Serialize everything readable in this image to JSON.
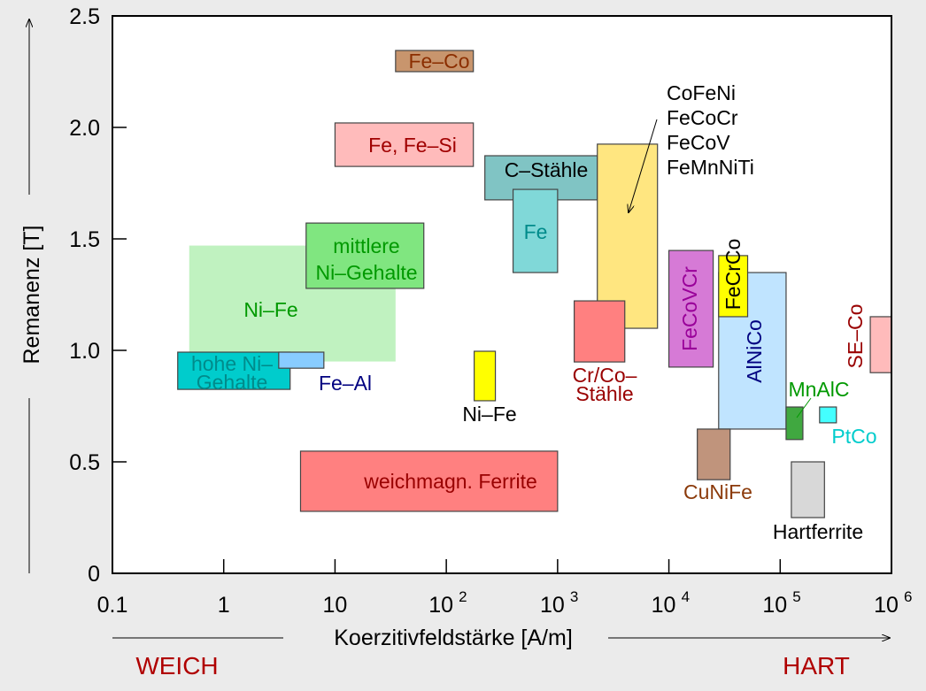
{
  "chart_data": {
    "type": "area",
    "title": "",
    "xlabel": "Koerzitivfeldstärke [A/m]",
    "ylabel": "Remanenz [T]",
    "xscale": "log",
    "xlim": [
      0.1,
      1000000
    ],
    "ylim": [
      0,
      2.5
    ],
    "x_ticks": [
      {
        "value": 0.1,
        "base": "0.1",
        "exp": ""
      },
      {
        "value": 1,
        "base": "1",
        "exp": ""
      },
      {
        "value": 10,
        "base": "10",
        "exp": ""
      },
      {
        "value": 100,
        "base": "10",
        "exp": "2"
      },
      {
        "value": 1000,
        "base": "10",
        "exp": "3"
      },
      {
        "value": 10000,
        "base": "10",
        "exp": "4"
      },
      {
        "value": 100000,
        "base": "10",
        "exp": "5"
      },
      {
        "value": 1000000,
        "base": "10",
        "exp": "6"
      }
    ],
    "y_ticks": [
      {
        "value": 0,
        "label": "0"
      },
      {
        "value": 0.5,
        "label": "0.5"
      },
      {
        "value": 1.0,
        "label": "1.0"
      },
      {
        "value": 1.5,
        "label": "1.5"
      },
      {
        "value": 2.0,
        "label": "2.0"
      },
      {
        "value": 2.5,
        "label": "2.5"
      }
    ],
    "grid": false,
    "regions": [
      {
        "name": "Ni-Fe (Bereich)",
        "x": [
          0.49,
          35
        ],
        "y": [
          0.95,
          1.47
        ],
        "fill": "#c0f2c0",
        "border": false,
        "label": [
          "Ni–Fe"
        ],
        "label_color": "#009900"
      },
      {
        "name": "Fe-Co",
        "x": [
          35,
          175
        ],
        "y": [
          2.25,
          2.345
        ],
        "fill": "#c8956d",
        "border": true,
        "label": [
          "Fe–Co"
        ],
        "label_color": "#8b2e00"
      },
      {
        "name": "Fe, Fe-Si",
        "x": [
          10,
          175
        ],
        "y": [
          1.825,
          2.02
        ],
        "fill": "#ffbbbb",
        "border": true,
        "label": [
          "Fe, Fe–Si"
        ],
        "label_color": "#a00000"
      },
      {
        "name": "C-Stähle",
        "x": [
          222,
          2275
        ],
        "y": [
          1.675,
          1.873
        ],
        "fill": "#80c4c4",
        "border": true,
        "label": [
          "C–Stähle"
        ],
        "label_color": "#000000"
      },
      {
        "name": "Fe",
        "x": [
          398,
          1000
        ],
        "y": [
          1.349,
          1.722
        ],
        "fill": "#80d8d8",
        "border": true,
        "label": [
          "Fe"
        ],
        "label_color": "#008b8b"
      },
      {
        "name": "CoFeNi/FeCoCr/FeCoV/FeMnNiTi",
        "x": [
          2275,
          7900
        ],
        "y": [
          1.099,
          1.925
        ],
        "fill": "#ffe680",
        "border": true,
        "label": [
          "CoFeNi",
          "FeCoCr",
          "FeCoV",
          "FeMnNiTi"
        ],
        "label_color": "#000000"
      },
      {
        "name": "mittlere Ni-Gehalte",
        "x": [
          5.5,
          62.8
        ],
        "y": [
          1.278,
          1.571
        ],
        "fill": "#80e680",
        "border": true,
        "label": [
          "mittlere",
          "Ni–Gehalte"
        ],
        "label_color": "#009900"
      },
      {
        "name": "hohe Ni-Gehalte",
        "x": [
          0.386,
          3.95
        ],
        "y": [
          0.825,
          0.992
        ],
        "fill": "#00cccc",
        "border": true,
        "label": [
          "hohe Ni–",
          "Gehalte"
        ],
        "label_color": "#008b8b"
      },
      {
        "name": "Fe-Al",
        "x": [
          3.12,
          7.94
        ],
        "y": [
          0.92,
          0.992
        ],
        "fill": "#88ccff",
        "border": true,
        "label": [
          "Fe–Al"
        ],
        "label_color": "#000080"
      },
      {
        "name": "Ni-Fe",
        "x": [
          178,
          276
        ],
        "y": [
          0.774,
          0.996
        ],
        "fill": "#ffff00",
        "border": true,
        "label": [
          "Ni–Fe"
        ],
        "label_color": "#000000"
      },
      {
        "name": "Cr/Co-Stähle",
        "x": [
          1410,
          4015
        ],
        "y": [
          0.948,
          1.222
        ],
        "fill": "#ff8080",
        "border": true,
        "label": [
          "Cr/Co–",
          "Stähle"
        ],
        "label_color": "#990000"
      },
      {
        "name": "weichmagn. Ferrite",
        "x": [
          4.9,
          1000
        ],
        "y": [
          0.278,
          0.548
        ],
        "fill": "#ff8080",
        "border": true,
        "label": [
          "weichmagn. Ferrite"
        ],
        "label_color": "#990000"
      },
      {
        "name": "FeCoVCr",
        "x": [
          10000,
          25000
        ],
        "y": [
          0.925,
          1.448
        ],
        "fill": "#d67ad6",
        "border": true,
        "label": [
          "FeCoVCr"
        ],
        "label_color": "#990099"
      },
      {
        "name": "AlNiCo",
        "x": [
          28000,
          113000
        ],
        "y": [
          0.647,
          1.349
        ],
        "fill": "#c0e4ff",
        "border": true,
        "label": [
          "AlNiCo"
        ],
        "label_color": "#000080"
      },
      {
        "name": "FeCrCo",
        "x": [
          28000,
          51000
        ],
        "y": [
          1.151,
          1.425
        ],
        "fill": "#ffff00",
        "border": true,
        "label": [
          "FeCrCo"
        ],
        "label_color": "#000000"
      },
      {
        "name": "MnAlC",
        "x": [
          113000,
          160000
        ],
        "y": [
          0.6,
          0.746
        ],
        "fill": "#40a840",
        "border": true,
        "label": [
          "MnAlC"
        ],
        "label_color": "#009900"
      },
      {
        "name": "PtCo",
        "x": [
          226000,
          320000
        ],
        "y": [
          0.675,
          0.746
        ],
        "fill": "#44ffff",
        "border": true,
        "label": [
          "PtCo"
        ],
        "label_color": "#00cccc"
      },
      {
        "name": "CuNiFe",
        "x": [
          18000,
          35500
        ],
        "y": [
          0.42,
          0.647
        ],
        "fill": "#c0947c",
        "border": true,
        "label": [
          "CuNiFe"
        ],
        "label_color": "#8b3a0a"
      },
      {
        "name": "Hartferrite",
        "x": [
          126000,
          250000
        ],
        "y": [
          0.25,
          0.5
        ],
        "fill": "#d8d8d8",
        "border": true,
        "label": [
          "Hartferrite"
        ],
        "label_color": "#000000"
      },
      {
        "name": "SE-Co",
        "x": [
          645000,
          1000000
        ],
        "y": [
          0.9,
          1.151
        ],
        "fill": "#ffbbbb",
        "border": true,
        "label": [
          "SE–Co"
        ],
        "label_color": "#990000"
      }
    ],
    "annotations": {
      "weich": "WEICH",
      "hart": "HART",
      "weich_hart_color": "#b00000"
    }
  }
}
